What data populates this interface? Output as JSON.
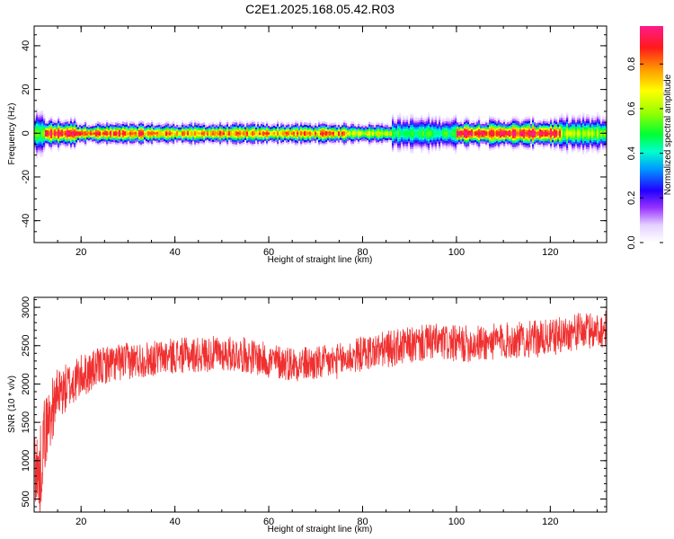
{
  "title": "C2E1.2025.168.05.42.R03",
  "colors": {
    "snr_line": "#f03030",
    "frame": "#000000"
  },
  "chart_data": [
    {
      "type": "heatmap",
      "xlabel": "Height of straight line (km)",
      "ylabel": "Frequency (Hz)",
      "xlim": [
        10,
        132
      ],
      "ylim": [
        -50,
        49
      ],
      "xticks": [
        "20",
        "40",
        "60",
        "80",
        "100",
        "120"
      ],
      "yticks": [
        "40",
        "20",
        "0",
        "-20",
        "-40"
      ],
      "colorbar": {
        "label": "Normalized spectral amplitude",
        "range": [
          0.0,
          0.97
        ],
        "ticks": [
          "0.0",
          "0.2",
          "0.4",
          "0.6",
          "0.8"
        ]
      },
      "band": {
        "center_hz": 0,
        "segments": [
          {
            "x_start": 10,
            "x_end": 12,
            "peak": 0.55,
            "half_width_hz": 6
          },
          {
            "x_start": 12,
            "x_end": 19,
            "peak": 0.93,
            "half_width_hz": 4
          },
          {
            "x_start": 19,
            "x_end": 33,
            "peak": 0.9,
            "half_width_hz": 3
          },
          {
            "x_start": 33,
            "x_end": 76,
            "peak": 0.82,
            "half_width_hz": 3
          },
          {
            "x_start": 76,
            "x_end": 86,
            "peak": 0.7,
            "half_width_hz": 3
          },
          {
            "x_start": 86,
            "x_end": 100,
            "peak": 0.5,
            "half_width_hz": 5
          },
          {
            "x_start": 100,
            "x_end": 122,
            "peak": 0.95,
            "half_width_hz": 4
          },
          {
            "x_start": 122,
            "x_end": 132,
            "peak": 0.6,
            "half_width_hz": 5
          }
        ]
      }
    },
    {
      "type": "line",
      "xlabel": "Height of straight line (km)",
      "ylabel": "SNR (10 * v/v)",
      "xlim": [
        10,
        132
      ],
      "ylim": [
        330,
        3130
      ],
      "xticks": [
        "20",
        "40",
        "60",
        "80",
        "100",
        "120"
      ],
      "yticks": [
        "3000",
        "2500",
        "2000",
        "1500",
        "1000",
        "500"
      ],
      "series": [
        {
          "x": [
            10,
            11,
            12,
            13,
            14,
            15,
            17,
            20,
            25,
            30,
            35,
            40,
            45,
            50,
            55,
            60,
            65,
            70,
            75,
            80,
            85,
            90,
            95,
            100,
            105,
            110,
            115,
            120,
            125,
            130,
            132
          ],
          "values": [
            1100,
            700,
            1300,
            1500,
            1700,
            1850,
            1950,
            2100,
            2250,
            2300,
            2330,
            2370,
            2380,
            2400,
            2380,
            2300,
            2270,
            2260,
            2300,
            2400,
            2450,
            2500,
            2550,
            2520,
            2530,
            2560,
            2580,
            2600,
            2680,
            2700,
            2720
          ],
          "noise_amplitude": [
            500,
            600,
            500,
            450,
            400,
            350,
            320,
            280,
            250,
            240,
            230,
            230,
            230,
            230,
            230,
            230,
            230,
            230,
            230,
            230,
            240,
            240,
            240,
            240,
            240,
            240,
            240,
            240,
            240,
            240,
            240
          ]
        }
      ]
    }
  ]
}
